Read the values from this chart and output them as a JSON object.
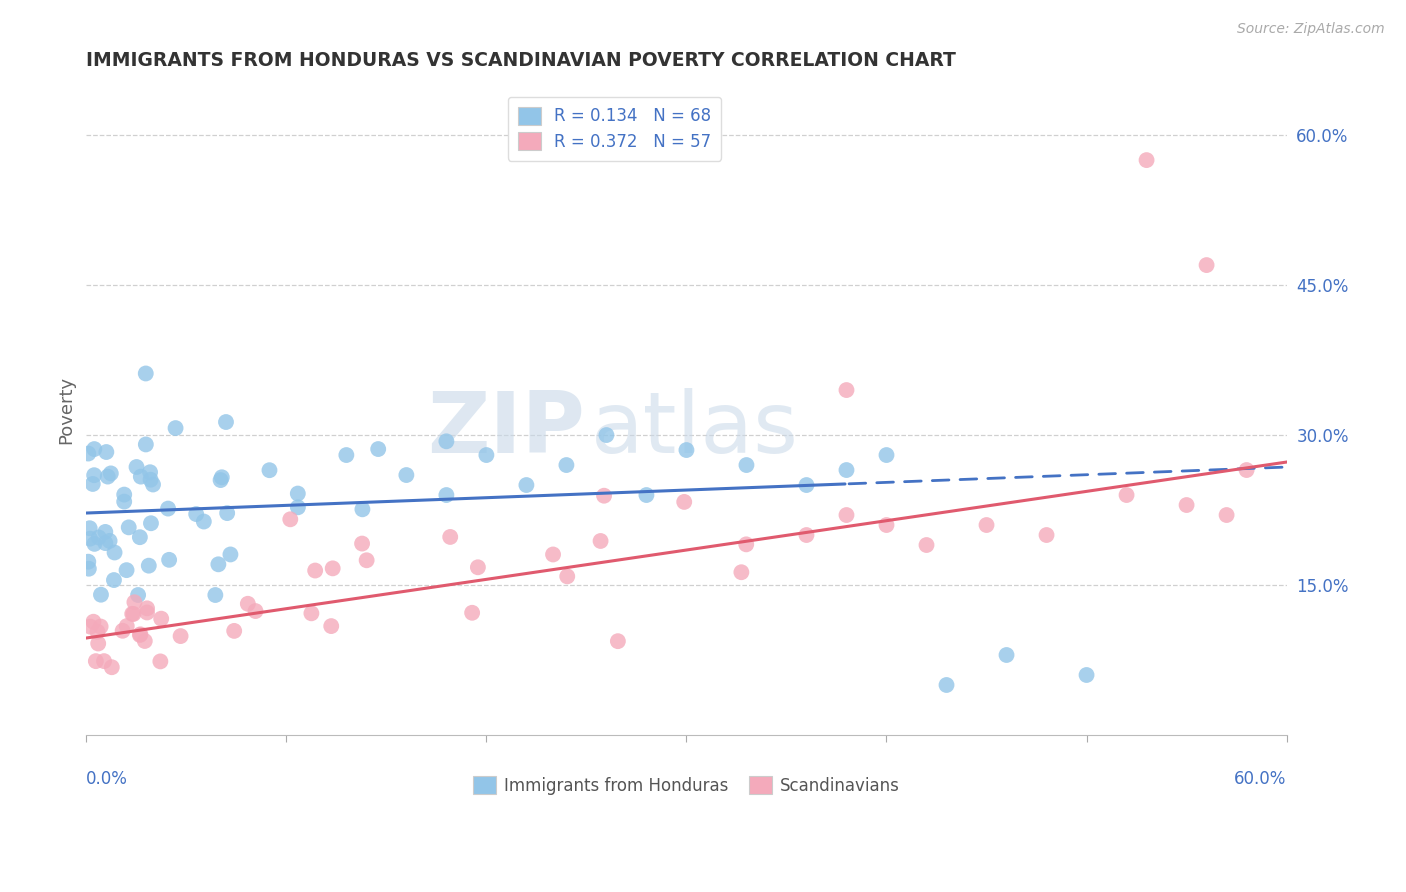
{
  "title": "IMMIGRANTS FROM HONDURAS VS SCANDINAVIAN POVERTY CORRELATION CHART",
  "source": "Source: ZipAtlas.com",
  "ylabel": "Poverty",
  "xlim": [
    0.0,
    0.6
  ],
  "ylim": [
    0.0,
    0.65
  ],
  "watermark_zip": "ZIP",
  "watermark_atlas": "atlas",
  "legend_label1": "R = 0.134   N = 68",
  "legend_label2": "R = 0.372   N = 57",
  "bottom_label1": "Immigrants from Honduras",
  "bottom_label2": "Scandinavians",
  "blue_color": "#92C5E8",
  "pink_color": "#F4AABB",
  "blue_line_color": "#4472C4",
  "pink_line_color": "#E05A6E",
  "grid_color": "#D0D0D0",
  "axis_label_color": "#4472C4",
  "title_color": "#333333",
  "blue_line_start_y": 0.222,
  "blue_line_end_y": 0.268,
  "blue_line_solid_end_x": 0.38,
  "pink_line_start_y": 0.097,
  "pink_line_end_y": 0.273,
  "seed": 99
}
